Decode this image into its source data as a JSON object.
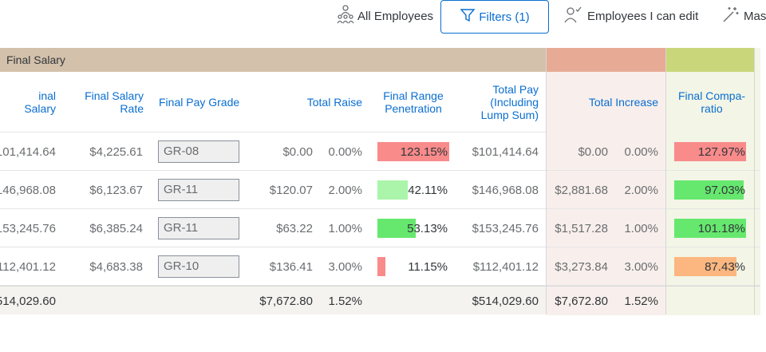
{
  "toolbar": {
    "all_employees": "All Employees",
    "filters": "Filters (1)",
    "employees_edit": "Employees I can edit",
    "mass": "Mas"
  },
  "groups": {
    "final_salary": "Final Salary"
  },
  "colors": {
    "final_salary_group": "#d3c1ab",
    "total_increase_group": "#e7ab95",
    "compa_group": "#c9d77a",
    "total_increase_bg": "#f8efec",
    "compa_bg": "#f3f5e6",
    "link": "#0a6ed1"
  },
  "headers": {
    "final_salary": "inal Salary",
    "final_salary_rate": "Final Salary Rate",
    "final_pay_grade": "Final Pay Grade",
    "total_raise": "Total Raise",
    "final_range_penetration": "Final Range Penetration",
    "total_pay": "Total Pay (Including Lump Sum)",
    "total_increase": "Total Increase",
    "final_compa_ratio": "Final Compa-ratio"
  },
  "rows": [
    {
      "final_salary": "101,414.64",
      "rate": "$4,225.61",
      "grade": "GR-08",
      "raise_amt": "$0.00",
      "raise_pct": "0.00%",
      "penetration": "123.15%",
      "penetration_value": 1.0,
      "penetration_color": "#f98b8b",
      "total_pay": "$101,414.64",
      "increase_amt": "$0.00",
      "increase_pct": "0.00%",
      "compa": "127.97%",
      "compa_value": 1.0,
      "compa_color": "#f98b8b"
    },
    {
      "final_salary": "146,968.08",
      "rate": "$6,123.67",
      "grade": "GR-11",
      "raise_amt": "$120.07",
      "raise_pct": "2.00%",
      "penetration": "42.11%",
      "penetration_value": 0.42,
      "penetration_color": "#aaf5aa",
      "total_pay": "$146,968.08",
      "increase_amt": "$2,881.68",
      "increase_pct": "2.00%",
      "compa": "97.03%",
      "compa_value": 0.97,
      "compa_color": "#66e86e"
    },
    {
      "final_salary": "153,245.76",
      "rate": "$6,385.24",
      "grade": "GR-11",
      "raise_amt": "$63.22",
      "raise_pct": "1.00%",
      "penetration": "53.13%",
      "penetration_value": 0.53,
      "penetration_color": "#66e86e",
      "total_pay": "$153,245.76",
      "increase_amt": "$1,517.28",
      "increase_pct": "1.00%",
      "compa": "101.18%",
      "compa_value": 1.0,
      "compa_color": "#66e86e"
    },
    {
      "final_salary": "112,401.12",
      "rate": "$4,683.38",
      "grade": "GR-10",
      "raise_amt": "$136.41",
      "raise_pct": "3.00%",
      "penetration": "11.15%",
      "penetration_value": 0.11,
      "penetration_color": "#f98b8b",
      "total_pay": "$112,401.12",
      "increase_amt": "$3,273.84",
      "increase_pct": "3.00%",
      "compa": "87.43%",
      "compa_value": 0.87,
      "compa_color": "#fbb77f"
    }
  ],
  "totals": {
    "final_salary": "514,029.60",
    "raise_amt": "$7,672.80",
    "raise_pct": "1.52%",
    "total_pay": "$514,029.60",
    "increase_amt": "$7,672.80",
    "increase_pct": "1.52%"
  }
}
